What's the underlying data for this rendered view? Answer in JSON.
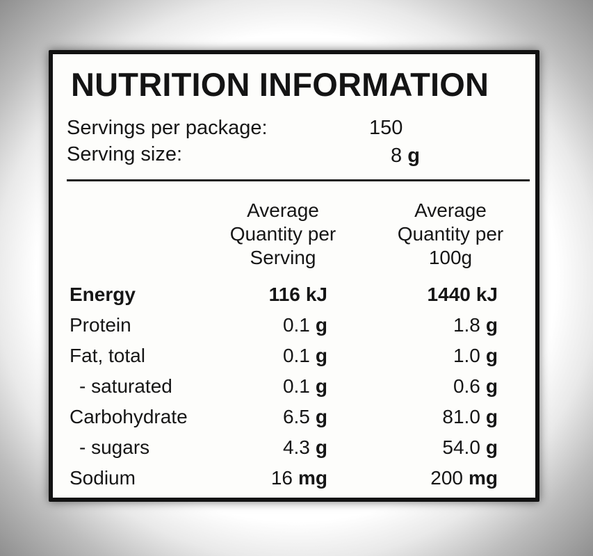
{
  "panel": {
    "title": "NUTRITION INFORMATION",
    "servings_label": "Servings per package:",
    "servings_value": "150",
    "serving_size_label": "Serving size:",
    "serving_size_value": "8",
    "serving_size_unit": "g"
  },
  "columns": {
    "per_serving": [
      "Average",
      "Quantity per",
      "Serving"
    ],
    "per_100g": [
      "Average",
      "Quantity per",
      "100g"
    ]
  },
  "rows": [
    {
      "label": "Energy",
      "serving": "116",
      "serving_unit": "kJ",
      "per100": "1440",
      "per100_unit": "kJ"
    },
    {
      "label": "Protein",
      "serving": "0.1",
      "serving_unit": "g",
      "per100": "1.8",
      "per100_unit": "g"
    },
    {
      "label": "Fat, total",
      "serving": "0.1",
      "serving_unit": "g",
      "per100": "1.0",
      "per100_unit": "g"
    },
    {
      "label": "- saturated",
      "serving": "0.1",
      "serving_unit": "g",
      "per100": "0.6",
      "per100_unit": "g"
    },
    {
      "label": "Carbohydrate",
      "serving": "6.5",
      "serving_unit": "g",
      "per100": "81.0",
      "per100_unit": "g"
    },
    {
      "label": "- sugars",
      "serving": "4.3",
      "serving_unit": "g",
      "per100": "54.0",
      "per100_unit": "g"
    },
    {
      "label": "Sodium",
      "serving": "16",
      "serving_unit": "mg",
      "per100": "200",
      "per100_unit": "mg"
    }
  ]
}
